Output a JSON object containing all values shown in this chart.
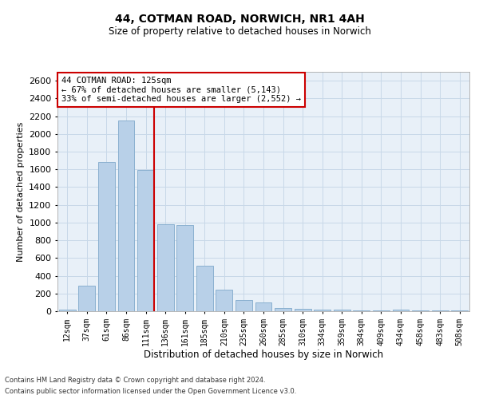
{
  "title1": "44, COTMAN ROAD, NORWICH, NR1 4AH",
  "title2": "Size of property relative to detached houses in Norwich",
  "xlabel": "Distribution of detached houses by size in Norwich",
  "ylabel": "Number of detached properties",
  "categories": [
    "12sqm",
    "37sqm",
    "61sqm",
    "86sqm",
    "111sqm",
    "136sqm",
    "161sqm",
    "185sqm",
    "210sqm",
    "235sqm",
    "260sqm",
    "285sqm",
    "310sqm",
    "334sqm",
    "359sqm",
    "384sqm",
    "409sqm",
    "434sqm",
    "458sqm",
    "483sqm",
    "508sqm"
  ],
  "values": [
    20,
    290,
    1680,
    2150,
    1590,
    980,
    970,
    510,
    245,
    130,
    95,
    40,
    25,
    18,
    18,
    10,
    5,
    18,
    5,
    5,
    10
  ],
  "bar_color": "#b8d0e8",
  "bar_edge_color": "#8ab0d0",
  "vline_color": "#cc0000",
  "annotation_text": "44 COTMAN ROAD: 125sqm\n← 67% of detached houses are smaller (5,143)\n33% of semi-detached houses are larger (2,552) →",
  "annotation_box_color": "white",
  "annotation_box_edge_color": "#cc0000",
  "ylim": [
    0,
    2700
  ],
  "yticks": [
    0,
    200,
    400,
    600,
    800,
    1000,
    1200,
    1400,
    1600,
    1800,
    2000,
    2200,
    2400,
    2600
  ],
  "grid_color": "#c8d8e8",
  "background_color": "#e8f0f8",
  "footer1": "Contains HM Land Registry data © Crown copyright and database right 2024.",
  "footer2": "Contains public sector information licensed under the Open Government Licence v3.0."
}
